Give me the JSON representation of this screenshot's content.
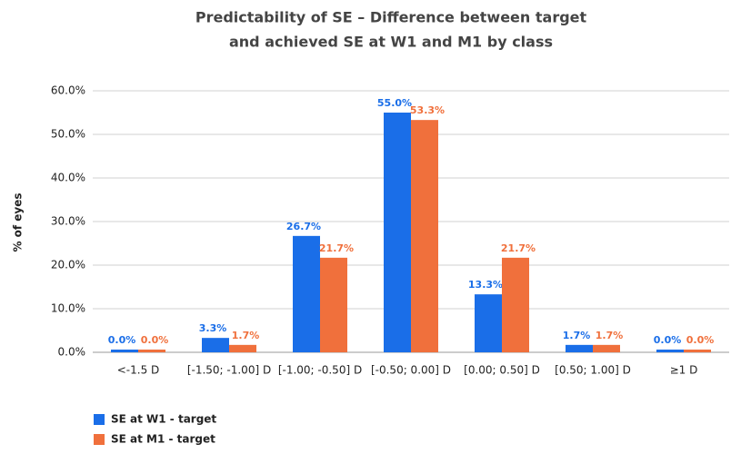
{
  "chart_data": {
    "type": "bar",
    "title": [
      "Predictability of SE – Difference between target",
      "and achieved SE at W1 and M1 by class"
    ],
    "y_label": "% of eyes",
    "categories": [
      "<-1.5 D",
      "[-1.50; -1.00] D",
      "[-1.00; -0.50] D",
      "[-0.50; 0.00] D",
      "[0.00; 0.50] D",
      "[0.50; 1.00] D",
      "≥1 D"
    ],
    "series": [
      {
        "name": "SE at W1 - target",
        "color": "#1a6ee8",
        "values": [
          0,
          3.3,
          26.7,
          55.0,
          13.3,
          1.7,
          0
        ],
        "value_labels": [
          "0.0%",
          "3.3%",
          "26.7%",
          "55.0%",
          "13.3%",
          "1.7%",
          "0.0%"
        ]
      },
      {
        "name": "SE at M1 - target",
        "color": "#f0703c",
        "values": [
          0,
          1.7,
          21.7,
          53.3,
          21.7,
          1.7,
          0
        ],
        "value_labels": [
          "0.0%",
          "1.7%",
          "21.7%",
          "53.3%",
          "21.7%",
          "1.7%",
          "0.0%"
        ]
      }
    ],
    "ylim": [
      0,
      60
    ],
    "yticks": [
      {
        "value": 0,
        "label": "0.0%"
      },
      {
        "value": 10,
        "label": "10.0%"
      },
      {
        "value": 20,
        "label": "20.0%"
      },
      {
        "value": 30,
        "label": "30.0%"
      },
      {
        "value": 40,
        "label": "40.0%"
      },
      {
        "value": 50,
        "label": "50.0%"
      },
      {
        "value": 60,
        "label": "60.0%"
      }
    ],
    "grid": true,
    "legend": "bottom-left"
  }
}
